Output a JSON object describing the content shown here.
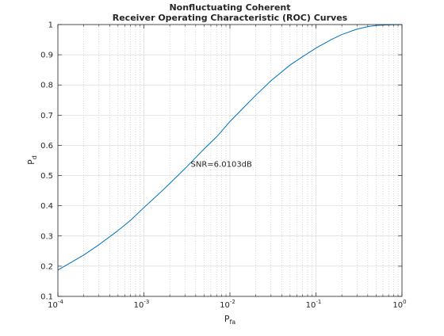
{
  "chart_data": {
    "type": "line",
    "title": [
      "Nonfluctuating Coherent",
      "Receiver Operating Characteristic (ROC) Curves"
    ],
    "xlabel": {
      "main": "P",
      "sub": "fa"
    },
    "ylabel": {
      "main": "P",
      "sub": "d"
    },
    "xscale": "log",
    "xlim": [
      0.0001,
      1
    ],
    "ylim": [
      0.1,
      1
    ],
    "x_ticks": [
      {
        "base": "10",
        "exp": "-4",
        "value": 0.0001
      },
      {
        "base": "10",
        "exp": "-3",
        "value": 0.001
      },
      {
        "base": "10",
        "exp": "-2",
        "value": 0.01
      },
      {
        "base": "10",
        "exp": "-1",
        "value": 0.1
      },
      {
        "base": "10",
        "exp": "0",
        "value": 1
      }
    ],
    "y_ticks": [
      {
        "label": "0.1",
        "value": 0.1
      },
      {
        "label": "0.2",
        "value": 0.2
      },
      {
        "label": "0.3",
        "value": 0.3
      },
      {
        "label": "0.4",
        "value": 0.4
      },
      {
        "label": "0.5",
        "value": 0.5
      },
      {
        "label": "0.6",
        "value": 0.6
      },
      {
        "label": "0.7",
        "value": 0.7
      },
      {
        "label": "0.8",
        "value": 0.8
      },
      {
        "label": "0.9",
        "value": 0.9
      },
      {
        "label": "1",
        "value": 1
      }
    ],
    "grid": true,
    "minor_grid": true,
    "series": [
      {
        "color": "#0072bd",
        "x": [
          0.0001,
          0.0002,
          0.0003,
          0.0005,
          0.0007,
          0.001,
          0.0015,
          0.002,
          0.003,
          0.005,
          0.007,
          0.01,
          0.015,
          0.02,
          0.03,
          0.05,
          0.07,
          0.1,
          0.15,
          0.2,
          0.3,
          0.4,
          0.5,
          0.7,
          1
        ],
        "y": [
          0.187,
          0.237,
          0.271,
          0.318,
          0.352,
          0.394,
          0.44,
          0.474,
          0.523,
          0.588,
          0.628,
          0.679,
          0.73,
          0.766,
          0.814,
          0.866,
          0.894,
          0.922,
          0.95,
          0.967,
          0.985,
          0.993,
          0.997,
          0.999,
          1.0
        ]
      }
    ],
    "annotations": [
      {
        "text": "SNR=6.0103dB",
        "x": 0.0035,
        "y": 0.54
      }
    ]
  }
}
